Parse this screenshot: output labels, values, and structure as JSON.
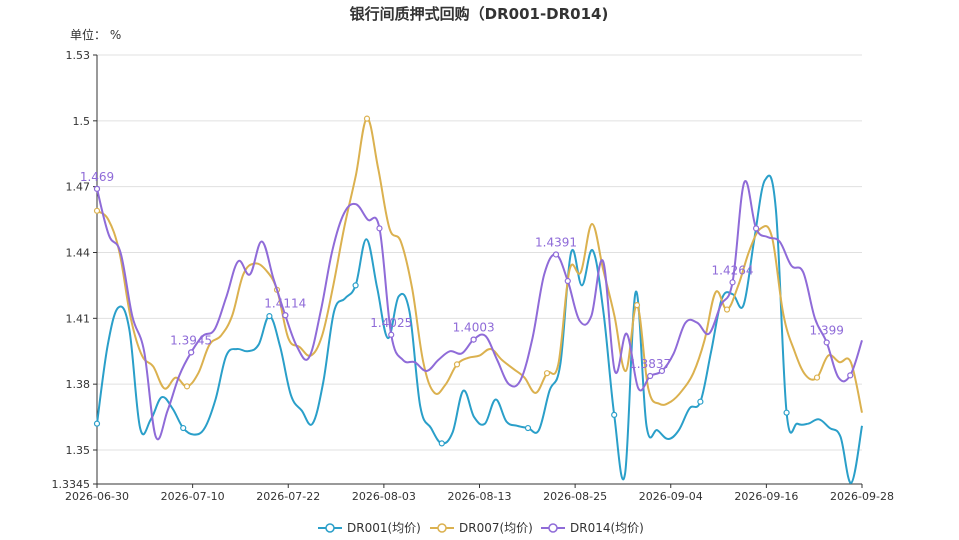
{
  "chart_data": {
    "type": "line",
    "title": "银行间质押式回购（DR001-DR014)",
    "unit_label": "单位： %",
    "x_ticks": [
      "2026-06-30",
      "2026-07-10",
      "2026-07-22",
      "2026-08-03",
      "2026-08-13",
      "2026-08-25",
      "2026-09-04",
      "2026-09-16",
      "2026-09-28"
    ],
    "y_ticks": [
      "1.3345",
      "1.35",
      "1.38",
      "1.41",
      "1.44",
      "1.47",
      "1.5",
      "1.53"
    ],
    "ylim": [
      1.3345,
      1.53
    ],
    "grid": true,
    "legend_position": "bottom",
    "x_index_range": [
      0,
      64
    ],
    "series": [
      {
        "name": "DR001(均价)",
        "color": "#2a9fc9",
        "points": [
          [
            0,
            1.362
          ],
          [
            1,
            1.398
          ],
          [
            2,
            1.415
          ],
          [
            3,
            1.405
          ],
          [
            4,
            1.36
          ],
          [
            5,
            1.364
          ],
          [
            6,
            1.374
          ],
          [
            7,
            1.369
          ],
          [
            8,
            1.36
          ],
          [
            9,
            1.357
          ],
          [
            10,
            1.36
          ],
          [
            11,
            1.373
          ],
          [
            12,
            1.393
          ],
          [
            13,
            1.396
          ],
          [
            14,
            1.395
          ],
          [
            15,
            1.398
          ],
          [
            16,
            1.411
          ],
          [
            17,
            1.397
          ],
          [
            18,
            1.375
          ],
          [
            19,
            1.368
          ],
          [
            20,
            1.362
          ],
          [
            21,
            1.381
          ],
          [
            22,
            1.413
          ],
          [
            23,
            1.419
          ],
          [
            24,
            1.425
          ],
          [
            25,
            1.446
          ],
          [
            26,
            1.424
          ],
          [
            27,
            1.401
          ],
          [
            28,
            1.42
          ],
          [
            29,
            1.413
          ],
          [
            30,
            1.37
          ],
          [
            31,
            1.36
          ],
          [
            32,
            1.353
          ],
          [
            33,
            1.358
          ],
          [
            34,
            1.377
          ],
          [
            35,
            1.365
          ],
          [
            36,
            1.362
          ],
          [
            37,
            1.373
          ],
          [
            38,
            1.363
          ],
          [
            39,
            1.361
          ],
          [
            40,
            1.36
          ],
          [
            41,
            1.359
          ],
          [
            42,
            1.377
          ],
          [
            43,
            1.389
          ],
          [
            44,
            1.44
          ],
          [
            45,
            1.425
          ],
          [
            46,
            1.441
          ],
          [
            47,
            1.413
          ],
          [
            48,
            1.366
          ],
          [
            49,
            1.339
          ],
          [
            50,
            1.422
          ],
          [
            51,
            1.361
          ],
          [
            52,
            1.359
          ],
          [
            53,
            1.355
          ],
          [
            54,
            1.359
          ],
          [
            55,
            1.369
          ],
          [
            56,
            1.372
          ],
          [
            57,
            1.395
          ],
          [
            58,
            1.419
          ],
          [
            59,
            1.421
          ],
          [
            60,
            1.416
          ],
          [
            61,
            1.446
          ],
          [
            62,
            1.473
          ],
          [
            63,
            1.46
          ],
          [
            64,
            1.367
          ],
          [
            65,
            1.362
          ],
          [
            66,
            1.362
          ],
          [
            67,
            1.364
          ],
          [
            68,
            1.36
          ],
          [
            69,
            1.356
          ],
          [
            70,
            1.335
          ],
          [
            71,
            1.361
          ]
        ],
        "labels": []
      },
      {
        "name": "DR007(均价)",
        "color": "#dbb14f",
        "points": [
          [
            0,
            1.459
          ],
          [
            1,
            1.455
          ],
          [
            2,
            1.44
          ],
          [
            3,
            1.41
          ],
          [
            4,
            1.393
          ],
          [
            5,
            1.388
          ],
          [
            6,
            1.378
          ],
          [
            7,
            1.383
          ],
          [
            8,
            1.379
          ],
          [
            9,
            1.385
          ],
          [
            10,
            1.398
          ],
          [
            11,
            1.402
          ],
          [
            12,
            1.411
          ],
          [
            13,
            1.43
          ],
          [
            14,
            1.435
          ],
          [
            15,
            1.432
          ],
          [
            16,
            1.423
          ],
          [
            17,
            1.401
          ],
          [
            18,
            1.397
          ],
          [
            19,
            1.393
          ],
          [
            20,
            1.402
          ],
          [
            21,
            1.425
          ],
          [
            22,
            1.452
          ],
          [
            23,
            1.475
          ],
          [
            24,
            1.501
          ],
          [
            25,
            1.478
          ],
          [
            26,
            1.451
          ],
          [
            27,
            1.445
          ],
          [
            28,
            1.424
          ],
          [
            29,
            1.39
          ],
          [
            30,
            1.376
          ],
          [
            31,
            1.38
          ],
          [
            32,
            1.389
          ],
          [
            33,
            1.392
          ],
          [
            34,
            1.393
          ],
          [
            35,
            1.396
          ],
          [
            36,
            1.391
          ],
          [
            37,
            1.387
          ],
          [
            38,
            1.383
          ],
          [
            39,
            1.376
          ],
          [
            40,
            1.385
          ],
          [
            41,
            1.389
          ],
          [
            42,
            1.432
          ],
          [
            43,
            1.431
          ],
          [
            44,
            1.453
          ],
          [
            45,
            1.432
          ],
          [
            46,
            1.411
          ],
          [
            47,
            1.386
          ],
          [
            48,
            1.416
          ],
          [
            49,
            1.378
          ],
          [
            50,
            1.371
          ],
          [
            51,
            1.372
          ],
          [
            52,
            1.377
          ],
          [
            53,
            1.385
          ],
          [
            54,
            1.4
          ],
          [
            55,
            1.422
          ],
          [
            56,
            1.414
          ],
          [
            57,
            1.425
          ],
          [
            58,
            1.441
          ],
          [
            59,
            1.451
          ],
          [
            60,
            1.447
          ],
          [
            61,
            1.412
          ],
          [
            62,
            1.395
          ],
          [
            63,
            1.384
          ],
          [
            64,
            1.383
          ],
          [
            65,
            1.393
          ],
          [
            66,
            1.39
          ],
          [
            67,
            1.39
          ],
          [
            68,
            1.367
          ]
        ],
        "labels": []
      },
      {
        "name": "DR014(均价)",
        "color": "#8f6bd8",
        "points": [
          [
            0,
            1.469
          ],
          [
            1,
            1.448
          ],
          [
            2,
            1.44
          ],
          [
            3,
            1.411
          ],
          [
            4,
            1.395
          ],
          [
            5,
            1.356
          ],
          [
            6,
            1.368
          ],
          [
            7,
            1.384
          ],
          [
            8,
            1.3945
          ],
          [
            9,
            1.402
          ],
          [
            10,
            1.405
          ],
          [
            11,
            1.42
          ],
          [
            12,
            1.436
          ],
          [
            13,
            1.43
          ],
          [
            14,
            1.445
          ],
          [
            15,
            1.428
          ],
          [
            16,
            1.4114
          ],
          [
            17,
            1.397
          ],
          [
            18,
            1.392
          ],
          [
            19,
            1.413
          ],
          [
            20,
            1.441
          ],
          [
            21,
            1.458
          ],
          [
            22,
            1.462
          ],
          [
            23,
            1.455
          ],
          [
            24,
            1.451
          ],
          [
            25,
            1.4025
          ],
          [
            26,
            1.391
          ],
          [
            27,
            1.39
          ],
          [
            28,
            1.386
          ],
          [
            29,
            1.391
          ],
          [
            30,
            1.395
          ],
          [
            31,
            1.394
          ],
          [
            32,
            1.4003
          ],
          [
            33,
            1.402
          ],
          [
            34,
            1.391
          ],
          [
            35,
            1.38
          ],
          [
            36,
            1.382
          ],
          [
            37,
            1.401
          ],
          [
            38,
            1.43
          ],
          [
            39,
            1.4391
          ],
          [
            40,
            1.427
          ],
          [
            41,
            1.409
          ],
          [
            42,
            1.411
          ],
          [
            43,
            1.436
          ],
          [
            44,
            1.386
          ],
          [
            45,
            1.403
          ],
          [
            46,
            1.378
          ],
          [
            47,
            1.3837
          ],
          [
            48,
            1.386
          ],
          [
            49,
            1.394
          ],
          [
            50,
            1.408
          ],
          [
            51,
            1.408
          ],
          [
            52,
            1.403
          ],
          [
            53,
            1.416
          ],
          [
            54,
            1.4264
          ],
          [
            55,
            1.472
          ],
          [
            56,
            1.451
          ],
          [
            57,
            1.447
          ],
          [
            58,
            1.445
          ],
          [
            59,
            1.434
          ],
          [
            60,
            1.431
          ],
          [
            61,
            1.41
          ],
          [
            62,
            1.399
          ],
          [
            63,
            1.383
          ],
          [
            64,
            1.384
          ],
          [
            65,
            1.4
          ]
        ],
        "labels": [
          {
            "index": 0,
            "text": "1.469"
          },
          {
            "index": 8,
            "text": "1.3945"
          },
          {
            "index": 16,
            "text": "1.4114"
          },
          {
            "index": 25,
            "text": "1.4025"
          },
          {
            "index": 32,
            "text": "1.4003"
          },
          {
            "index": 39,
            "text": "1.4391"
          },
          {
            "index": 47,
            "text": "1.3837"
          },
          {
            "index": 54,
            "text": "1.4264"
          },
          {
            "index": 62,
            "text": "1.399"
          }
        ]
      }
    ]
  }
}
